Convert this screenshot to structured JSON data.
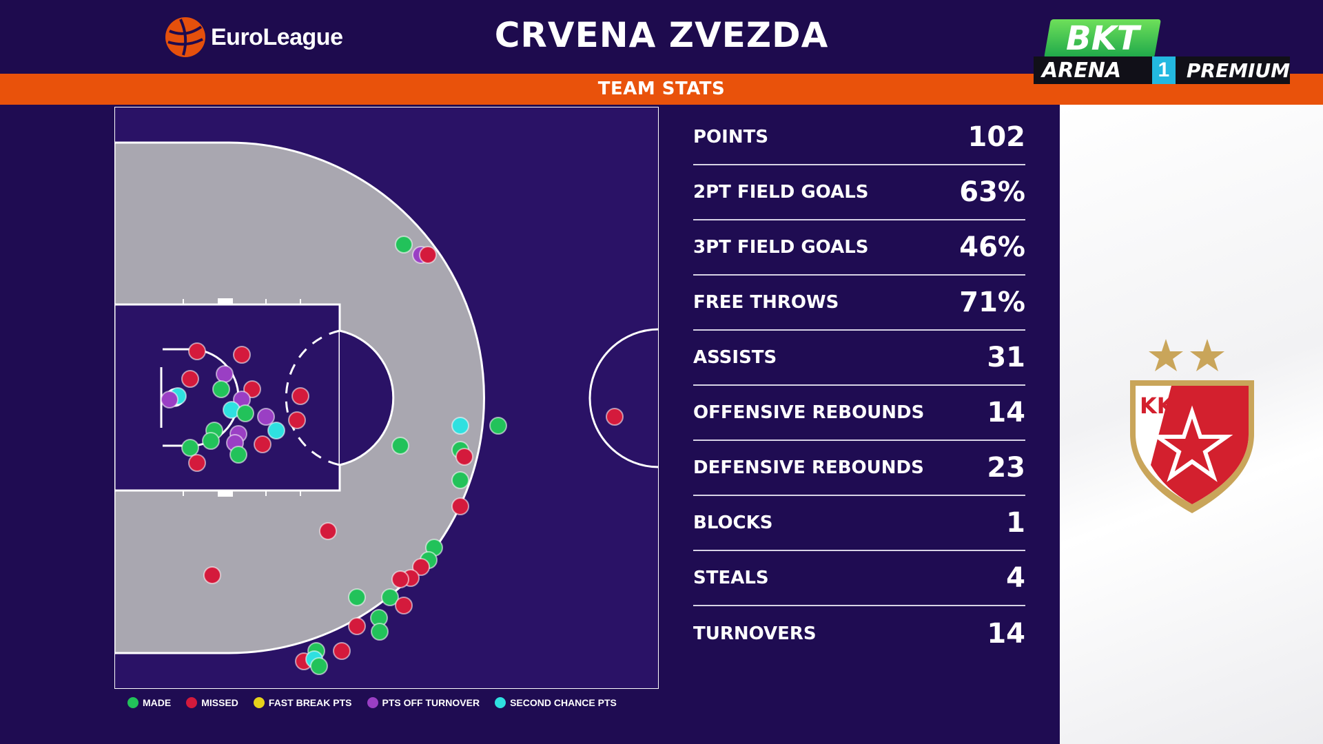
{
  "header": {
    "league_name": "EuroLeague",
    "team_name": "CRVENA ZVEZDA",
    "section_title": "TEAM STATS"
  },
  "broadcaster": {
    "brand": "BKT",
    "arena": "ARENA",
    "channel": "1",
    "tier": "PREMIUM"
  },
  "stats": [
    {
      "label": "POINTS",
      "value": "102"
    },
    {
      "label": "2PT FIELD GOALS",
      "value": "63%"
    },
    {
      "label": "3PT FIELD GOALS",
      "value": "46%"
    },
    {
      "label": "FREE THROWS",
      "value": "71%"
    },
    {
      "label": "ASSISTS",
      "value": "31"
    },
    {
      "label": "OFFENSIVE REBOUNDS",
      "value": "14"
    },
    {
      "label": "DEFENSIVE REBOUNDS",
      "value": "23"
    },
    {
      "label": "BLOCKS",
      "value": "1"
    },
    {
      "label": "STEALS",
      "value": "4"
    },
    {
      "label": "TURNOVERS",
      "value": "14"
    }
  ],
  "legend": [
    {
      "key": "made",
      "label": "MADE",
      "color": "#22c25a"
    },
    {
      "key": "missed",
      "label": "MISSED",
      "color": "#d41a3c"
    },
    {
      "key": "fastbreak",
      "label": "FAST BREAK PTS",
      "color": "#e6d21a"
    },
    {
      "key": "turnover",
      "label": "PTS OFF TURNOVER",
      "color": "#9a3fc4"
    },
    {
      "key": "second",
      "label": "SECOND CHANCE PTS",
      "color": "#2fe0e0"
    }
  ],
  "colors": {
    "background": "#1f0c52",
    "accent_orange": "#e9520b",
    "court_gray": "#a9a7b0"
  },
  "crest": {
    "text": "KK",
    "stars": 2
  }
}
